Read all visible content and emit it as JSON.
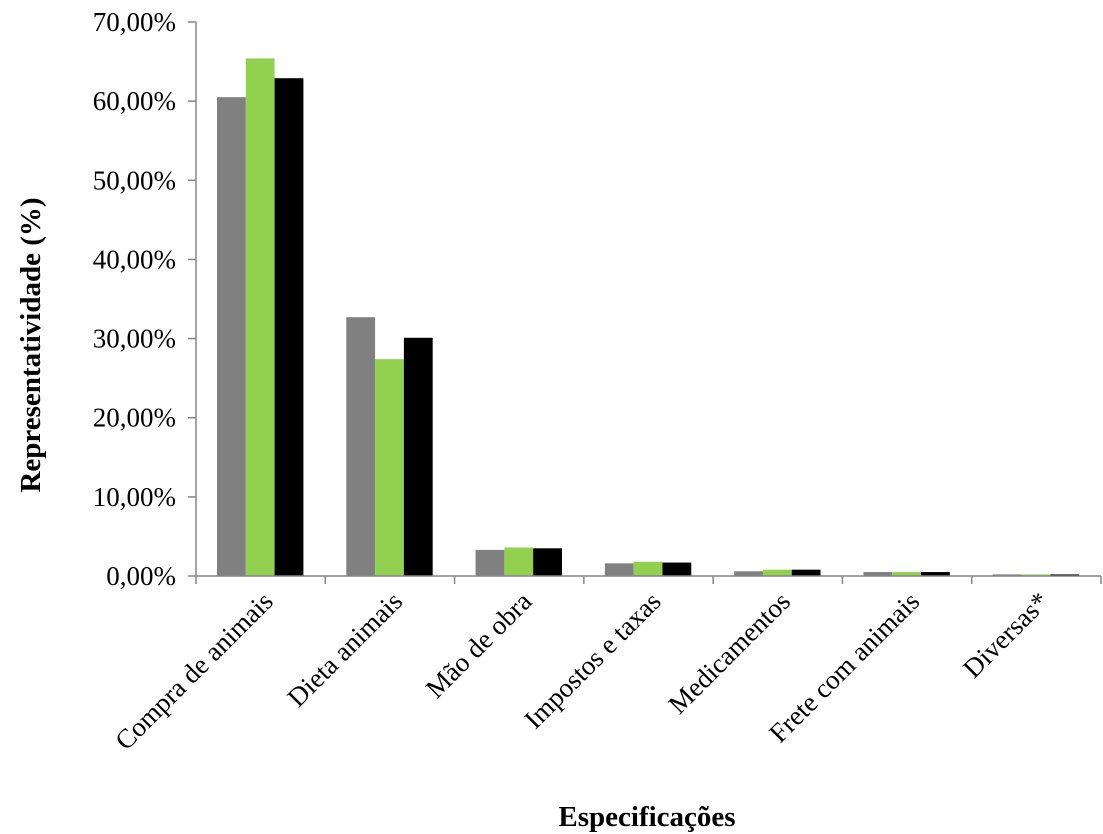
{
  "chart_data": {
    "type": "bar",
    "title": "",
    "xlabel": "Especificações",
    "ylabel": "Representatividade (%)",
    "ylim": [
      0,
      70
    ],
    "yticks": [
      "0,00%",
      "10,00%",
      "20,00%",
      "30,00%",
      "40,00%",
      "50,00%",
      "60,00%",
      "70,00%"
    ],
    "grid": false,
    "legend": "none",
    "categories": [
      "Compra de animais",
      "Dieta animais",
      "Mão de obra",
      "Impostos e taxas",
      "Medicamentos",
      "Frete com animais",
      "Diversas*"
    ],
    "series": [
      {
        "color": "#808080",
        "values": [
          60.5,
          32.7,
          3.3,
          1.6,
          0.6,
          0.5,
          0.2
        ]
      },
      {
        "color": "#92d050",
        "values": [
          65.4,
          27.4,
          3.6,
          1.8,
          0.8,
          0.5,
          0.2
        ]
      },
      {
        "color": "#000000",
        "values": [
          62.9,
          30.1,
          3.5,
          1.7,
          0.8,
          0.5,
          0.2
        ]
      }
    ]
  }
}
